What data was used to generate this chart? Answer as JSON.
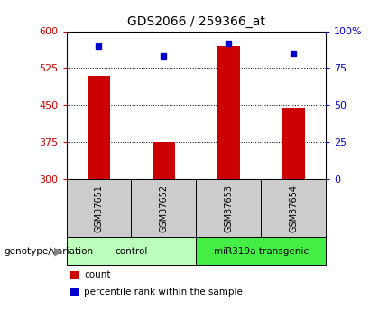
{
  "title": "GDS2066 / 259366_at",
  "samples": [
    "GSM37651",
    "GSM37652",
    "GSM37653",
    "GSM37654"
  ],
  "bar_values": [
    510,
    375,
    570,
    445
  ],
  "percentile_values": [
    90,
    83,
    92,
    85
  ],
  "bar_color": "#cc0000",
  "dot_color": "#0000cc",
  "ylim_left": [
    300,
    600
  ],
  "ylim_right": [
    0,
    100
  ],
  "yticks_left": [
    300,
    375,
    450,
    525,
    600
  ],
  "yticks_right": [
    0,
    25,
    50,
    75,
    100
  ],
  "ytick_right_labels": [
    "0",
    "25",
    "50",
    "75",
    "100%"
  ],
  "grid_lines": [
    375,
    450,
    525
  ],
  "groups": [
    {
      "label": "control",
      "indices": [
        0,
        1
      ],
      "color": "#bbffbb"
    },
    {
      "label": "miR319a transgenic",
      "indices": [
        2,
        3
      ],
      "color": "#44ee44"
    }
  ],
  "genotype_label": "genotype/variation",
  "legend_items": [
    {
      "label": "count",
      "color": "#cc0000"
    },
    {
      "label": "percentile rank within the sample",
      "color": "#0000cc"
    }
  ],
  "bar_width": 0.35,
  "title_fontsize": 10,
  "tick_label_fontsize": 8,
  "left_tick_color": "#cc0000",
  "right_tick_color": "#0000cc",
  "sample_box_color": "#cccccc",
  "fig_width": 4.2,
  "fig_height": 3.45,
  "fig_dpi": 100
}
